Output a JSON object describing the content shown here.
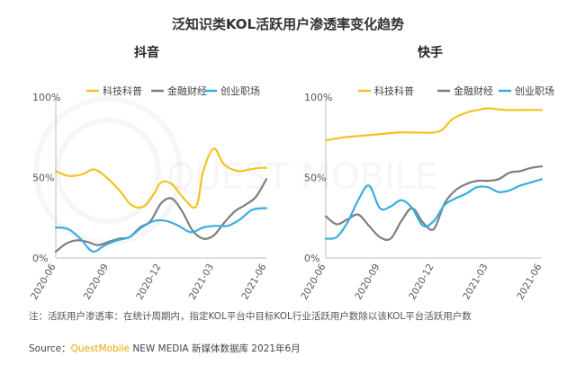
{
  "title": "泛知识类KOL活跃用户渗透率变化趋势",
  "note": "注：活跃用户渗透率：在统计周期内，指定KOL平台中目标KOL行业活跃用户数除以该KOL平台活跃用户数",
  "source": {
    "prefix": "Source：",
    "brand": "QuestMobile",
    "rest": " NEW MEDIA 新媒体数据库 2021年6月"
  },
  "watermark_text": "QUEST MOBILE",
  "colors": {
    "科技科普": "#f5c223",
    "金融财经": "#7f7f7f",
    "创业职场": "#3aaee0"
  },
  "chart_data": [
    {
      "type": "line",
      "title": "抖音",
      "x_ticks": [
        "2020-06",
        "2020-09",
        "2020-12",
        "2021-03",
        "2021-06"
      ],
      "x_range": [
        0,
        12
      ],
      "ylim": [
        0,
        100
      ],
      "y_ticks": [
        "0%",
        "50%",
        "100%"
      ],
      "y_tick_values": [
        0,
        50,
        100
      ],
      "legend": "top",
      "series": [
        {
          "name": "科技科普",
          "x": [
            0,
            0.7,
            1.5,
            2.2,
            3,
            3.7,
            4.3,
            5,
            5.6,
            6,
            6.6,
            7.3,
            8,
            8.4,
            9,
            9.6,
            10.4,
            11,
            11.6,
            12
          ],
          "values": [
            54,
            51,
            52,
            55,
            49,
            41,
            33,
            32,
            40,
            47,
            46,
            37,
            32,
            54,
            68,
            58,
            54,
            55,
            56,
            56
          ]
        },
        {
          "name": "金融财经",
          "x": [
            0,
            0.6,
            1.2,
            1.8,
            2.4,
            3,
            3.6,
            4.2,
            4.8,
            5.4,
            6,
            6.6,
            7.2,
            7.8,
            8.4,
            9,
            9.6,
            10.2,
            10.8,
            11.4,
            12
          ],
          "values": [
            4,
            9,
            11,
            10,
            8,
            10,
            12,
            13,
            19,
            23,
            34,
            37,
            29,
            17,
            12,
            14,
            22,
            29,
            33,
            38,
            49
          ]
        },
        {
          "name": "创业职场",
          "x": [
            0,
            0.7,
            1.4,
            2.1,
            2.8,
            3.5,
            4.2,
            4.9,
            5.6,
            6.3,
            7,
            7.7,
            8.4,
            9.1,
            9.8,
            10.5,
            11.2,
            12
          ],
          "values": [
            19,
            18,
            12,
            4,
            8,
            11,
            13,
            19,
            23,
            23,
            20,
            16,
            19,
            20,
            20,
            24,
            30,
            31
          ]
        }
      ]
    },
    {
      "type": "line",
      "title": "快手",
      "x_ticks": [
        "2020-06",
        "2020-09",
        "2020-12",
        "2021-03",
        "2021-06"
      ],
      "x_range": [
        0,
        12
      ],
      "ylim": [
        0,
        100
      ],
      "y_ticks": [
        "0%",
        "50%",
        "100%"
      ],
      "y_tick_values": [
        0,
        50,
        100
      ],
      "legend": "top",
      "series": [
        {
          "name": "科技科普",
          "x": [
            0,
            1,
            2,
            3,
            4,
            5,
            6,
            6.5,
            7,
            7.5,
            8,
            8.5,
            9,
            10,
            11,
            12
          ],
          "values": [
            73,
            75,
            76,
            77,
            78,
            78,
            78,
            80,
            86,
            89,
            91,
            92,
            93,
            92,
            92,
            92
          ]
        },
        {
          "name": "金融财经",
          "x": [
            0,
            0.6,
            1.2,
            1.8,
            2.4,
            3,
            3.6,
            4.2,
            4.8,
            5.4,
            6,
            6.6,
            7.2,
            7.8,
            8.4,
            9,
            9.6,
            10.2,
            10.8,
            11.4,
            12
          ],
          "values": [
            26,
            21,
            24,
            27,
            20,
            13,
            12,
            23,
            31,
            22,
            18,
            34,
            42,
            46,
            48,
            48,
            49,
            53,
            54,
            56,
            57
          ]
        },
        {
          "name": "创业职场",
          "x": [
            0,
            0.6,
            1.2,
            1.8,
            2.4,
            3,
            3.6,
            4.2,
            4.8,
            5.4,
            6,
            6.6,
            7.2,
            7.8,
            8.4,
            9,
            9.6,
            10.2,
            10.8,
            11.4,
            12
          ],
          "values": [
            12,
            13,
            22,
            36,
            45,
            31,
            32,
            36,
            31,
            20,
            23,
            33,
            37,
            40,
            44,
            44,
            41,
            42,
            45,
            47,
            49
          ]
        }
      ]
    }
  ]
}
